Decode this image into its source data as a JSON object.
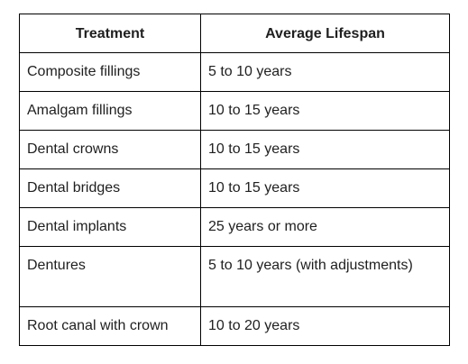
{
  "table": {
    "headers": [
      "Treatment",
      "Average Lifespan"
    ],
    "rows": [
      [
        "Composite fillings",
        "5 to 10 years"
      ],
      [
        "Amalgam fillings",
        "10 to 15 years"
      ],
      [
        "Dental crowns",
        "10 to 15 years"
      ],
      [
        "Dental bridges",
        "10 to 15 years"
      ],
      [
        "Dental implants",
        "25 years or more"
      ],
      [
        "Dentures",
        "5 to 10 years (with adjustments)"
      ],
      [
        "Root canal with crown",
        "10 to 20 years"
      ]
    ]
  }
}
